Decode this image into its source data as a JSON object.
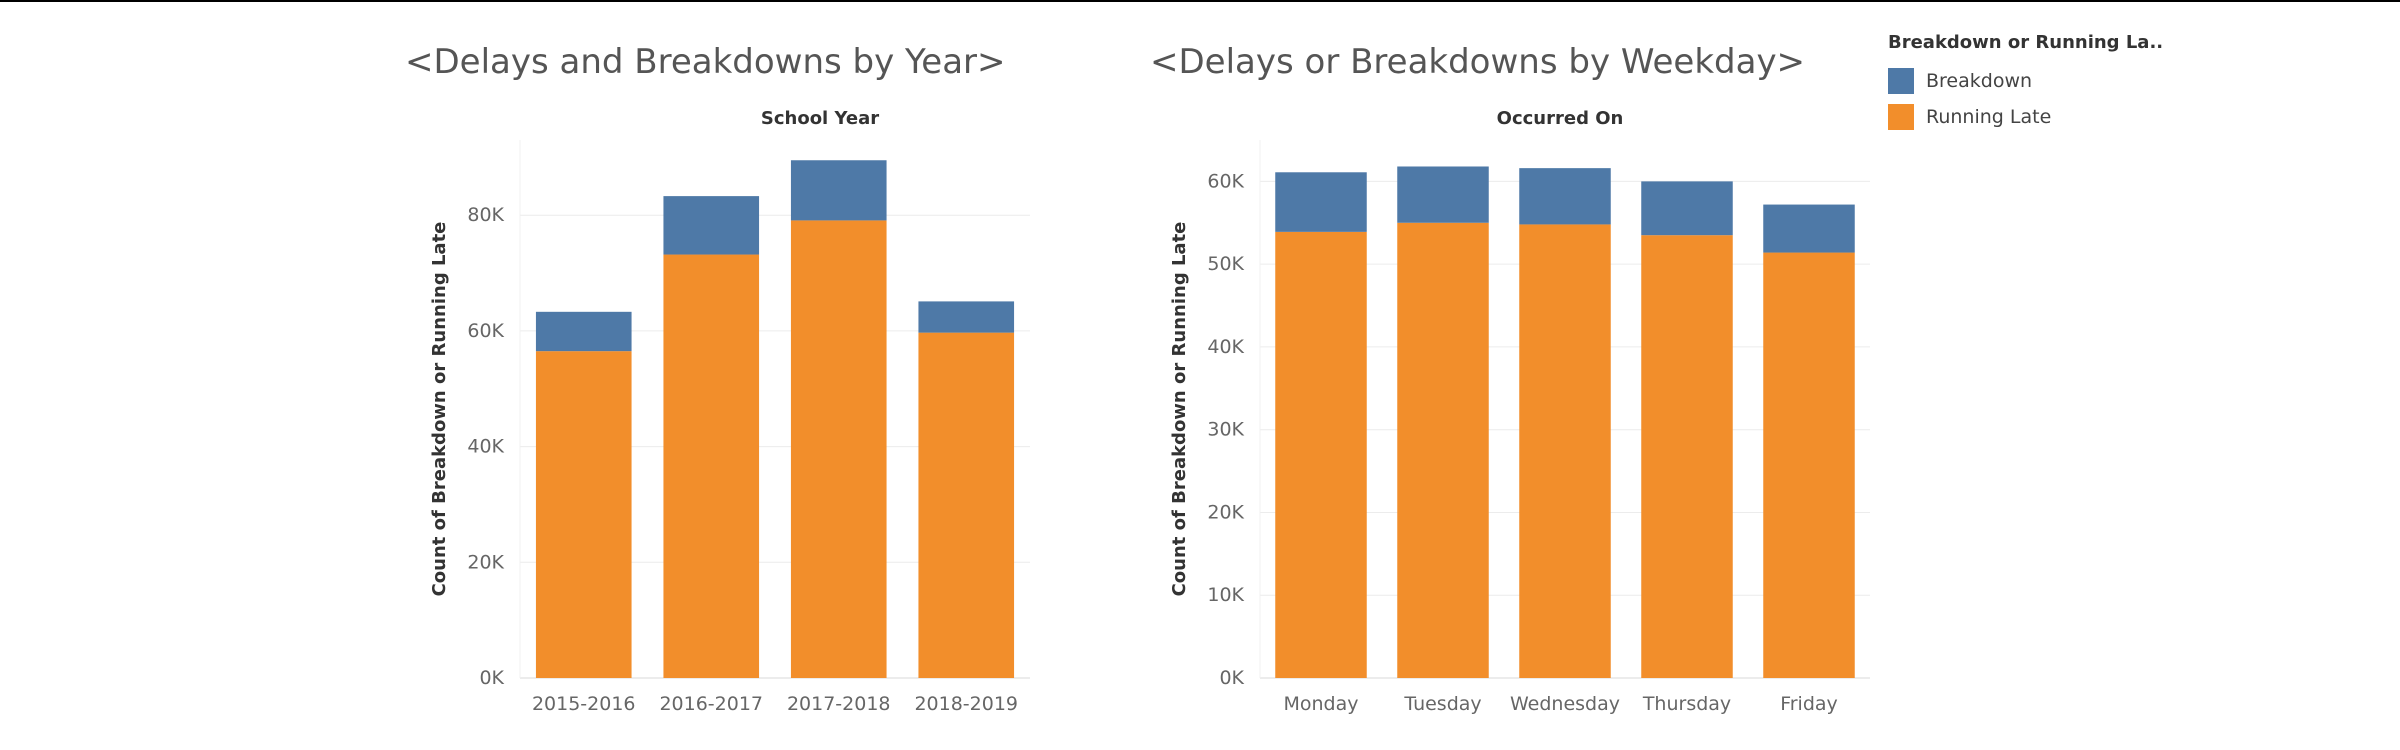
{
  "legend": {
    "title": "Breakdown or Running La..",
    "items": [
      {
        "label": "Breakdown",
        "color": "#4e79a7"
      },
      {
        "label": "Running Late",
        "color": "#f28e2b"
      }
    ]
  },
  "chart_data": [
    {
      "type": "bar",
      "stacked": true,
      "title": "<Delays and Breakdowns by Year>",
      "xlabel": "School Year",
      "ylabel": "Count of Breakdown or Running Late",
      "categories": [
        "2015-2016",
        "2016-2017",
        "2017-2018",
        "2018-2019"
      ],
      "series": [
        {
          "name": "Running Late",
          "values": [
            56500,
            73200,
            79100,
            59700
          ]
        },
        {
          "name": "Breakdown",
          "values": [
            6800,
            10100,
            10400,
            5400
          ]
        }
      ],
      "yticks": [
        0,
        20000,
        40000,
        60000,
        80000
      ],
      "ytick_labels": [
        "0K",
        "20K",
        "40K",
        "60K",
        "80K"
      ],
      "ylim": [
        0,
        93000
      ],
      "grid": true
    },
    {
      "type": "bar",
      "stacked": true,
      "title": "<Delays or Breakdowns by Weekday>",
      "xlabel": "Occurred On",
      "ylabel": "Count of Breakdown or Running Late",
      "categories": [
        "Monday",
        "Tuesday",
        "Wednesday",
        "Thursday",
        "Friday"
      ],
      "series": [
        {
          "name": "Running Late",
          "values": [
            53900,
            55000,
            54800,
            53500,
            51400
          ]
        },
        {
          "name": "Breakdown",
          "values": [
            7200,
            6800,
            6800,
            6500,
            5800
          ]
        }
      ],
      "yticks": [
        0,
        10000,
        20000,
        30000,
        40000,
        50000,
        60000
      ],
      "ytick_labels": [
        "0K",
        "10K",
        "20K",
        "30K",
        "40K",
        "50K",
        "60K"
      ],
      "ylim": [
        0,
        65000
      ],
      "grid": true
    }
  ]
}
